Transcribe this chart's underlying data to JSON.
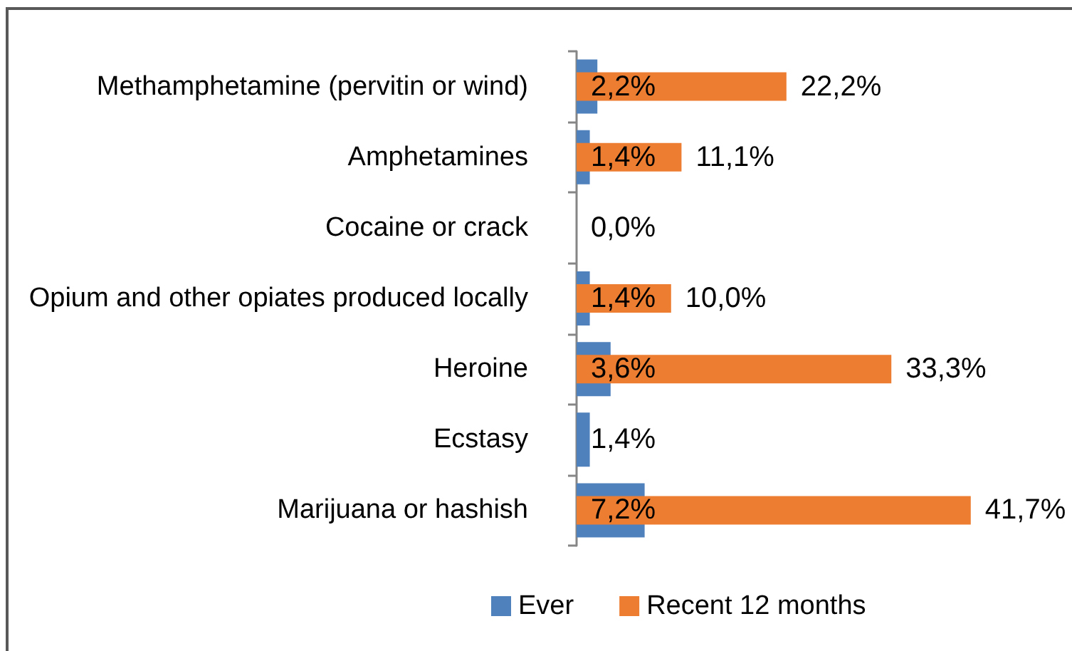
{
  "chart_data": {
    "type": "bar",
    "orientation": "horizontal",
    "categories": [
      "Methamphetamine (pervitin or wind)",
      "Amphetamines",
      "Cocaine or crack",
      "Opium and other opiates produced locally",
      "Heroine",
      "Ecstasy",
      "Marijuana or hashish"
    ],
    "series": [
      {
        "name": "Ever",
        "color": "#4f81bd",
        "values": [
          2.2,
          1.4,
          0,
          1.4,
          3.6,
          1.4,
          7.2
        ],
        "value_labels": [
          "2,2%",
          "1,4%",
          "0,0%",
          "1,4%",
          "3,6%",
          "1,4%",
          "7,2%"
        ]
      },
      {
        "name": "Recent 12 months",
        "color": "#ed7d31",
        "values": [
          22.2,
          11.1,
          null,
          10.0,
          33.3,
          null,
          41.7
        ],
        "value_labels": [
          "22,2%",
          "11,1%",
          null,
          "10,0%",
          "33,3%",
          null,
          "41,7%"
        ]
      }
    ],
    "legend": "bottom",
    "tick_labels": "y"
  }
}
